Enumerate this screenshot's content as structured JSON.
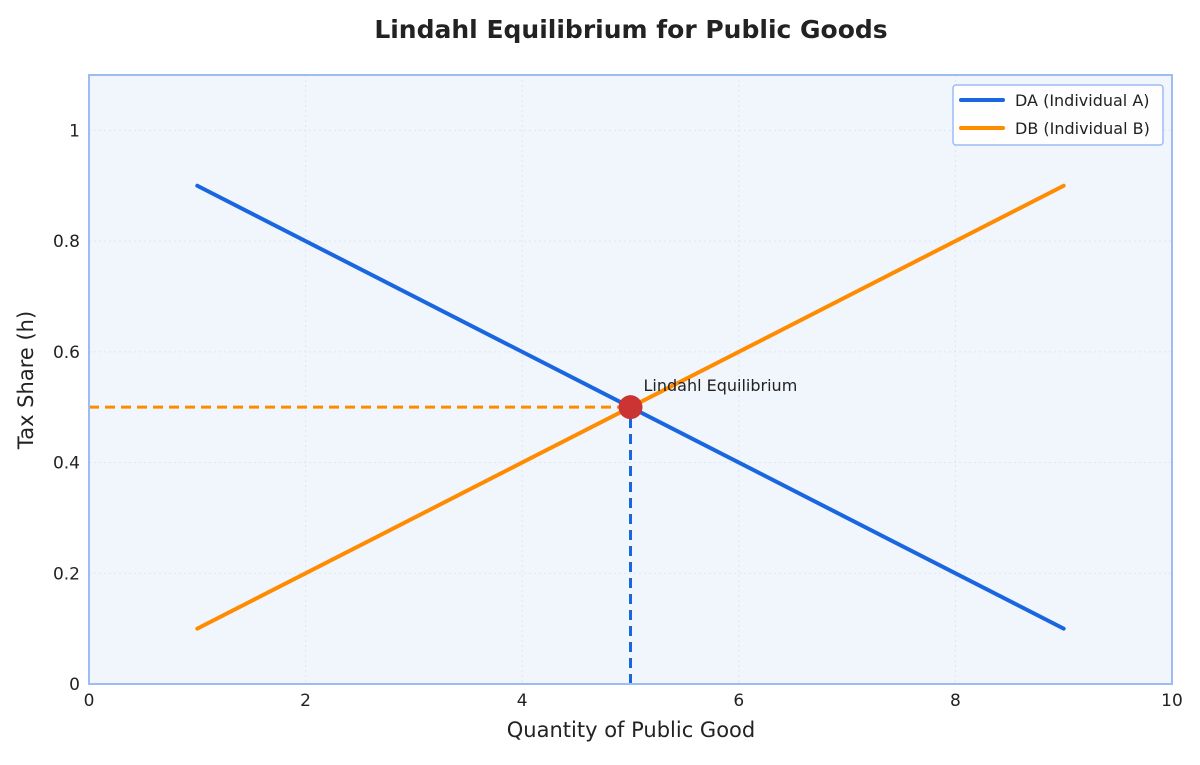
{
  "chart_data": {
    "type": "line",
    "title": "Lindahl Equilibrium for Public Goods",
    "xlabel": "Quantity of Public Good",
    "ylabel": "Tax Share (h)",
    "xlim": [
      0,
      10
    ],
    "ylim": [
      0,
      1.1
    ],
    "xticks": [
      0,
      2,
      4,
      6,
      8,
      10
    ],
    "yticks": [
      0,
      0.2,
      0.4,
      0.6,
      0.8,
      1
    ],
    "xtick_labels": [
      "0",
      "2",
      "4",
      "6",
      "8",
      "10"
    ],
    "ytick_labels": [
      "0",
      "0.2",
      "0.4",
      "0.6",
      "0.8",
      "1"
    ],
    "grid": true,
    "legend_position": "top-right",
    "series": [
      {
        "name": "DA (Individual A)",
        "color": "#1a66e0",
        "x": [
          1,
          9
        ],
        "y": [
          0.9,
          0.1
        ]
      },
      {
        "name": "DB (Individual B)",
        "color": "#ff8c00",
        "x": [
          1,
          9
        ],
        "y": [
          0.1,
          0.9
        ]
      }
    ],
    "equilibrium": {
      "label": "Lindahl Equilibrium",
      "x": 5,
      "y": 0.5,
      "color": "#cc3333"
    },
    "reference_lines": [
      {
        "orientation": "horizontal",
        "value": 0.5,
        "from": 0,
        "to": 5,
        "color": "#ff8c00",
        "style": "dashed"
      },
      {
        "orientation": "vertical",
        "value": 5,
        "from": 0,
        "to": 0.5,
        "color": "#1a66e0",
        "style": "dashed"
      }
    ],
    "colors": {
      "plot_background": "#f1f6fd",
      "frame": "#9dbcf5",
      "grid": "#dde6f2",
      "text": "#222222"
    }
  }
}
